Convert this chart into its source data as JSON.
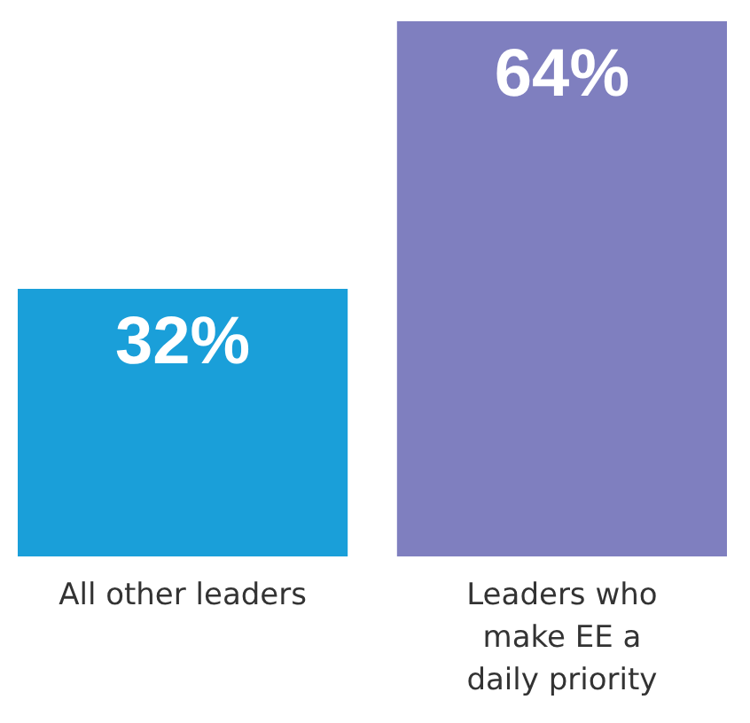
{
  "chart_data": {
    "type": "bar",
    "categories": [
      "All other leaders",
      "Leaders who make EE a daily priority"
    ],
    "values": [
      32,
      64
    ],
    "colors": [
      "#1a9fd9",
      "#7f7fbf"
    ],
    "value_labels": [
      "32%",
      "64%"
    ]
  }
}
